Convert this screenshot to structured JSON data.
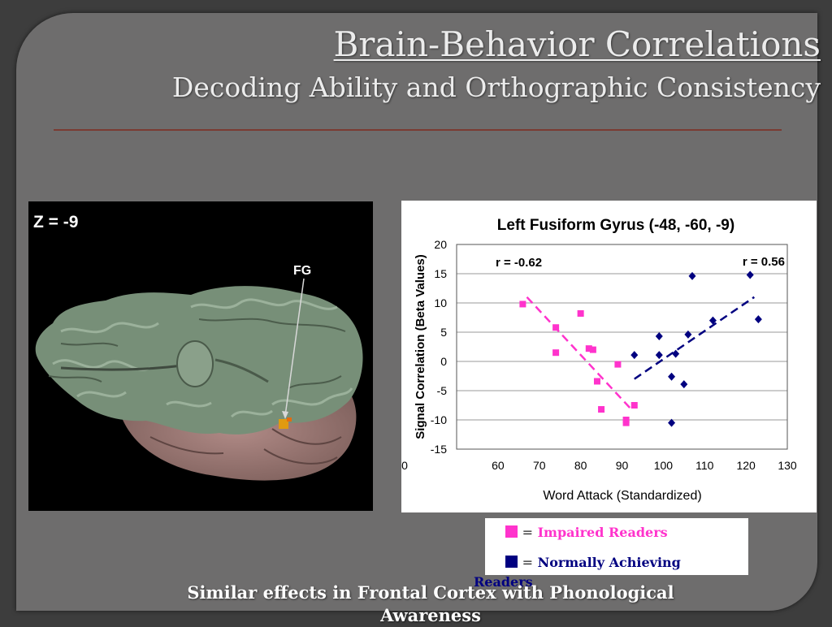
{
  "slide": {
    "title": "Brain-Behavior Correlations",
    "subtitle": "Decoding Ability and Orthographic Consistency",
    "caption": "Similar effects in Frontal Cortex with Phonological Awareness"
  },
  "brain_image": {
    "slice_label": "Z = -9",
    "region_label": "FG"
  },
  "legend": {
    "equals": "=",
    "impaired": "Impaired Readers",
    "normal": "Normally Achieving Readers"
  },
  "colors": {
    "impaired": "#ff33cc",
    "normal": "#000080",
    "accent_line": "#7a3b32"
  },
  "chart_data": {
    "type": "scatter",
    "title": "Left Fusiform Gyrus (-48, -60, -9)",
    "xlabel": "Word Attack (Standardized)",
    "ylabel": "Signal Correlation (Beta Values)",
    "xlim": [
      50,
      130
    ],
    "ylim": [
      -15,
      20
    ],
    "x_ticks": [
      "0",
      "60",
      "70",
      "80",
      "90",
      "100",
      "110",
      "120",
      "130"
    ],
    "y_ticks": [
      "20",
      "15",
      "10",
      "5",
      "0",
      "-5",
      "-10",
      "-15"
    ],
    "grid": true,
    "series": [
      {
        "name": "Impaired Readers",
        "marker": "square",
        "annotation": "r = -0.62",
        "trendline": [
          [
            67,
            11
          ],
          [
            92,
            -8
          ]
        ],
        "points": [
          [
            66,
            9.8
          ],
          [
            74,
            5.8
          ],
          [
            74,
            1.5
          ],
          [
            80,
            8.2
          ],
          [
            82,
            2.2
          ],
          [
            83,
            2
          ],
          [
            84,
            -3.4
          ],
          [
            85,
            -8.2
          ],
          [
            89,
            -0.5
          ],
          [
            91,
            -10
          ],
          [
            91,
            -10.5
          ],
          [
            93,
            -7.5
          ]
        ]
      },
      {
        "name": "Normally Achieving Readers",
        "marker": "diamond",
        "annotation": "r = 0.56",
        "trendline": [
          [
            93,
            -3
          ],
          [
            122,
            11
          ]
        ],
        "points": [
          [
            93,
            1.1
          ],
          [
            99,
            4.3
          ],
          [
            99,
            1.1
          ],
          [
            102,
            -2.6
          ],
          [
            102,
            -10.5
          ],
          [
            103,
            1.3
          ],
          [
            105,
            -3.9
          ],
          [
            106,
            4.6
          ],
          [
            107,
            14.6
          ],
          [
            112,
            7
          ],
          [
            121,
            14.8
          ],
          [
            123,
            7.2
          ]
        ]
      }
    ]
  }
}
